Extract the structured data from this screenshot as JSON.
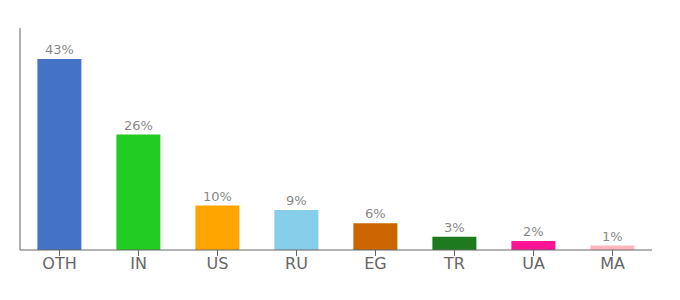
{
  "chart_data": {
    "type": "bar",
    "categories": [
      "OTH",
      "IN",
      "US",
      "RU",
      "EG",
      "TR",
      "UA",
      "MA"
    ],
    "values": [
      43,
      26,
      10,
      9,
      6,
      3,
      2,
      1
    ],
    "value_labels": [
      "43%",
      "26%",
      "10%",
      "9%",
      "6%",
      "3%",
      "2%",
      "1%"
    ],
    "colors": [
      "#4472C4",
      "#22CC22",
      "#FFA500",
      "#87CEEB",
      "#CC6600",
      "#1E7A1E",
      "#FF1493",
      "#FFB6C1"
    ],
    "ylim": [
      0,
      50
    ],
    "data_labels": true,
    "tick_labels": "x"
  }
}
